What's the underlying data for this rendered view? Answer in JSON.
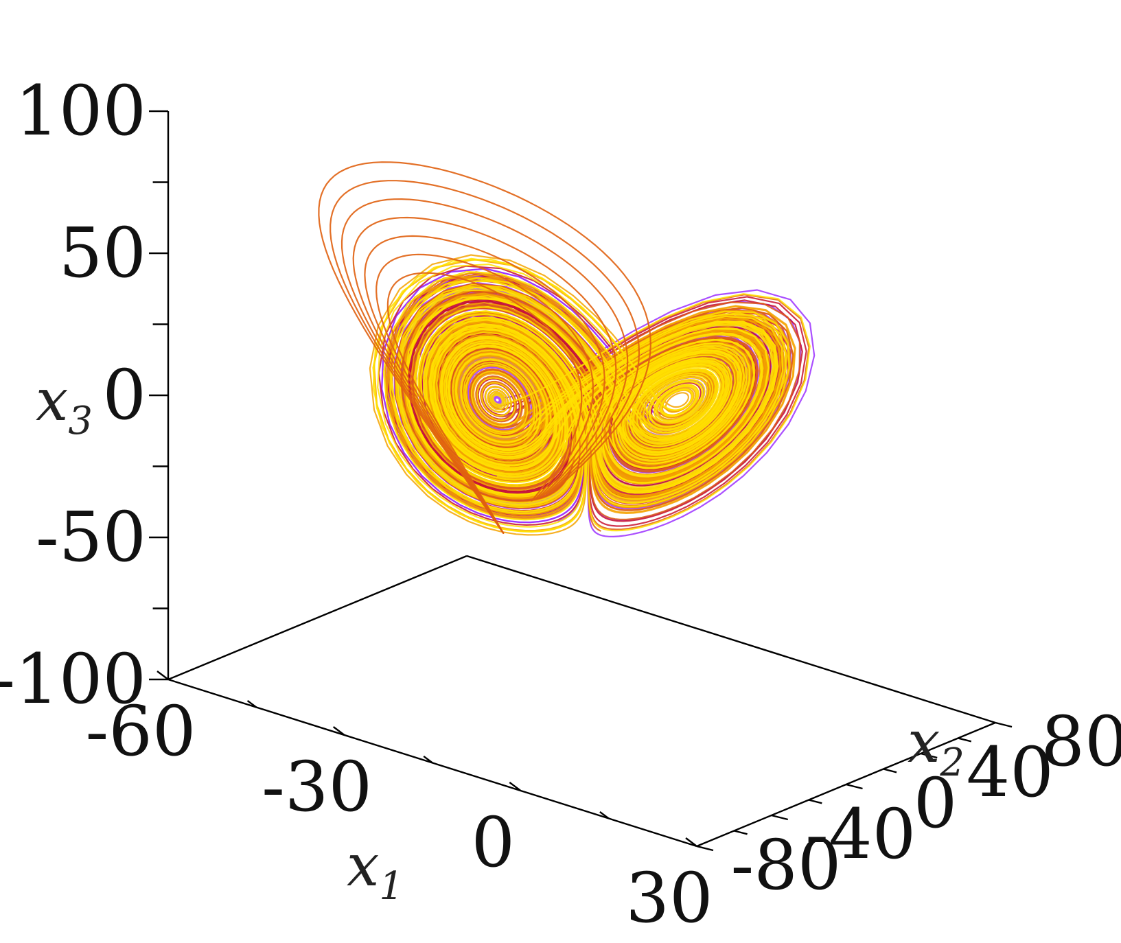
{
  "chart_data": {
    "type": "line",
    "projection": "3d",
    "title": "",
    "axes": {
      "x1": {
        "symbol": "x",
        "subscript": "1",
        "range": [
          -60,
          30
        ],
        "ticks": [
          "-60",
          "-30",
          "0",
          "30"
        ]
      },
      "x2": {
        "symbol": "x",
        "subscript": "2",
        "range": [
          -80,
          80
        ],
        "ticks": [
          "-80",
          "-40",
          "0",
          "40",
          "80"
        ]
      },
      "x3": {
        "symbol": "x",
        "subscript": "3",
        "range": [
          -100,
          100
        ],
        "ticks": [
          "-100",
          "-50",
          "0",
          "50",
          "100"
        ]
      }
    },
    "grid": false,
    "legend": "none",
    "series": [
      {
        "color": "#9b30ff",
        "description_role": "trajectory"
      },
      {
        "color": "#c8102e",
        "description_role": "trajectory"
      },
      {
        "color": "#e06010",
        "description_role": "trajectory"
      },
      {
        "color": "#f4a300",
        "description_role": "trajectory"
      },
      {
        "color": "#ffe000",
        "description_role": "trajectory"
      }
    ]
  }
}
